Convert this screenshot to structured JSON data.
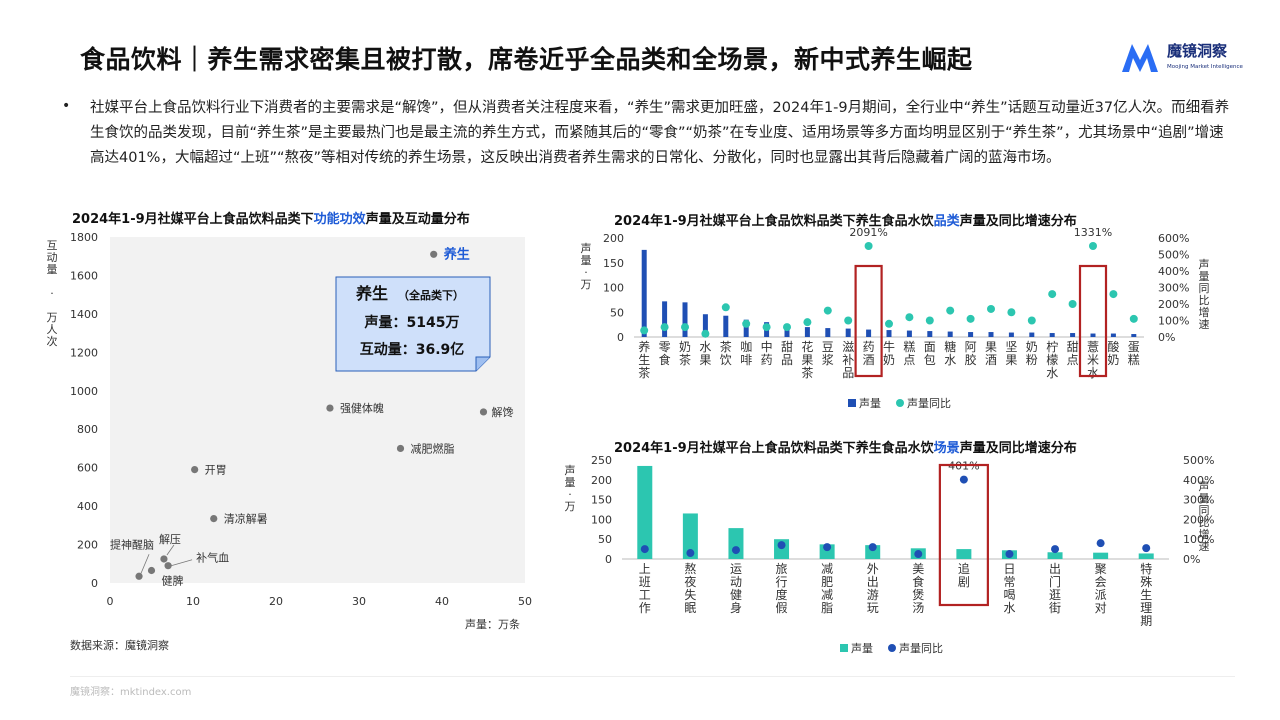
{
  "title": "食品饮料｜养生需求密集且被打散，席卷近乎全品类和全场景，新中式养生崛起",
  "logo": {
    "name": "魔镜洞察",
    "sub": "Moojing Market Intelligence"
  },
  "bullet": "•",
  "paragraph": "社媒平台上食品饮料行业下消费者的主要需求是“解馋”，但从消费者关注程度来看，“养生”需求更加旺盛，2024年1-9月期间，全行业中“养生”话题互动量近37亿人次。而细看养生食饮的品类发现，目前“养生茶”是主要最热门也是最主流的养生方式，而紧随其后的“零食”“奶茶”在专业度、适用场景等多方面均明显区别于“养生茶”，尤其场景中“追剧”增速高达401%，大幅超过“上班”“熬夜”等相对传统的养生场景，这反映出消费者养生需求的日常化、分散化，同时也显露出其背后隐藏着广阔的蓝海市场。",
  "chart_titles": {
    "c1": [
      "2024年1-9月社媒平台上食品饮料品类下",
      "功能功效",
      "声量及互动量分布"
    ],
    "c2": [
      "2024年1-9月社媒平台上食品饮料品类下养生食品水饮",
      "品类",
      "声量及同比增速分布"
    ],
    "c3": [
      "2024年1-9月社媒平台上食品饮料品类下养生食品水饮",
      "场景",
      "声量及同比增速分布"
    ]
  },
  "callout": {
    "title": "养生",
    "sub": "（全品类下）",
    "line1": "声量：5145万",
    "line2": "互动量：36.9亿"
  },
  "source": "数据来源：魔镜洞察",
  "footer": "魔镜洞察：mktindex.com",
  "colors": {
    "bar_blue": "#1f4fb4",
    "teal": "#2cc6b0",
    "dot_blue": "#1f4fb4",
    "highlight_box": "#b22222",
    "accent": "#1e5bd6"
  },
  "chart_data": [
    {
      "type": "scatter",
      "xlabel": "声量：万条",
      "ylabel": "互动量：万人次",
      "xlim": [
        0,
        50
      ],
      "ylim": [
        0,
        1800
      ],
      "xticks": [
        "0",
        "10",
        "20",
        "30",
        "40",
        "50"
      ],
      "yticks": [
        "0",
        "200",
        "400",
        "600",
        "800",
        "1000",
        "1200",
        "1400",
        "1600",
        "1800"
      ],
      "points": [
        {
          "label": "养生",
          "x": 39,
          "y": 1710
        },
        {
          "label": "解馋",
          "x": 45,
          "y": 890
        },
        {
          "label": "强健体魄",
          "x": 26.5,
          "y": 910
        },
        {
          "label": "减肥燃脂",
          "x": 35,
          "y": 700
        },
        {
          "label": "开胃",
          "x": 10.2,
          "y": 590
        },
        {
          "label": "清凉解暑",
          "x": 12.5,
          "y": 335
        },
        {
          "label": "解压",
          "x": 6.5,
          "y": 125
        },
        {
          "label": "提神醒脑",
          "x": 3.5,
          "y": 35
        },
        {
          "label": "补气血",
          "x": 7,
          "y": 90
        },
        {
          "label": "健脾",
          "x": 5,
          "y": 65
        }
      ]
    },
    {
      "type": "bar",
      "ylabel": "声量：万",
      "y2label": "声量同比增速",
      "ylim": [
        0,
        200
      ],
      "y2lim": [
        0,
        6
      ],
      "yticks": [
        "0",
        "50",
        "100",
        "150",
        "200"
      ],
      "y2ticks": [
        "0%",
        "100%",
        "200%",
        "300%",
        "400%",
        "500%",
        "600%"
      ],
      "categories": [
        "养生茶",
        "零食",
        "奶茶",
        "水果",
        "茶饮",
        "咖啡",
        "中药",
        "甜品",
        "花果茶",
        "豆浆",
        "滋补品",
        "药酒",
        "牛奶",
        "糕点",
        "面包",
        "糖水",
        "阿胶",
        "果酒",
        "坚果",
        "奶粉",
        "柠檬水",
        "甜点",
        "薏米水",
        "酸奶",
        "蛋糕"
      ],
      "series": [
        {
          "name": "声量",
          "kind": "bar",
          "values": [
            176,
            72,
            70,
            46,
            43,
            35,
            30,
            22,
            20,
            18,
            17,
            15,
            14,
            13,
            12,
            11,
            10,
            10,
            9,
            9,
            8,
            8,
            7,
            7,
            6
          ]
        },
        {
          "name": "声量同比",
          "kind": "dot",
          "values": [
            0.4,
            0.6,
            0.6,
            0.2,
            1.8,
            0.8,
            0.6,
            0.6,
            0.9,
            1.6,
            1.0,
            20.91,
            0.8,
            1.2,
            1.0,
            1.6,
            1.1,
            1.7,
            1.5,
            1.0,
            2.6,
            2.0,
            13.31,
            2.6,
            1.1
          ]
        }
      ],
      "annotations": [
        {
          "category": "药酒",
          "text": "2091%"
        },
        {
          "category": "薏米水",
          "text": "1331%"
        }
      ],
      "legend": "bottom"
    },
    {
      "type": "bar",
      "ylabel": "声量：万",
      "y2label": "声量同比增速",
      "ylim": [
        0,
        250
      ],
      "y2lim": [
        0,
        5
      ],
      "yticks": [
        "0",
        "50",
        "100",
        "150",
        "200",
        "250"
      ],
      "y2ticks": [
        "0%",
        "100%",
        "200%",
        "300%",
        "400%",
        "500%"
      ],
      "categories": [
        "上班工作",
        "熬夜失眠",
        "运动健身",
        "旅行度假",
        "减肥减脂",
        "外出游玩",
        "美食煲汤",
        "追剧",
        "日常喝水",
        "出门逛街",
        "聚会派对",
        "特殊生理期"
      ],
      "series": [
        {
          "name": "声量",
          "kind": "bar",
          "values": [
            235,
            115,
            78,
            50,
            37,
            35,
            27,
            25,
            22,
            17,
            16,
            14
          ]
        },
        {
          "name": "声量同比",
          "kind": "dot",
          "values": [
            0.5,
            0.3,
            0.45,
            0.7,
            0.6,
            0.6,
            0.25,
            4.01,
            0.25,
            0.5,
            0.8,
            0.55
          ]
        }
      ],
      "annotations": [
        {
          "category": "追剧",
          "text": "401%"
        }
      ],
      "legend": "bottom"
    }
  ]
}
